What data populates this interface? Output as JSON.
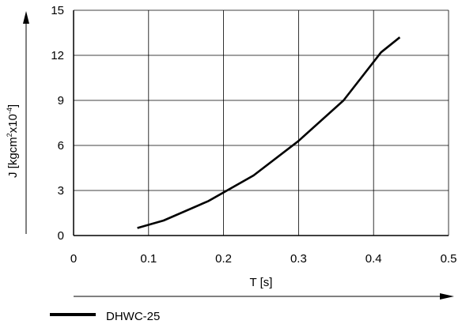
{
  "chart_data": {
    "type": "line",
    "xlabel": "T [s]",
    "ylabel_main": "J [kgcm",
    "ylabel_sup1": "2",
    "ylabel_mid": "x10",
    "ylabel_sup2": "-4",
    "ylabel_end": "]",
    "xlim": [
      0,
      0.5
    ],
    "ylim": [
      0,
      15
    ],
    "x_ticks": [
      0,
      0.1,
      0.2,
      0.3,
      0.4,
      0.5
    ],
    "x_tick_labels": [
      "0",
      "0.1",
      "0.2",
      "0.3",
      "0.4",
      "0.5"
    ],
    "y_ticks": [
      0,
      3,
      6,
      9,
      12,
      15
    ],
    "y_tick_labels": [
      "0",
      "3",
      "6",
      "9",
      "12",
      "15"
    ],
    "grid": true,
    "legend_position": "bottom-left",
    "series": [
      {
        "name": "DHWC-25",
        "color": "#000000",
        "x": [
          0.085,
          0.12,
          0.18,
          0.24,
          0.3,
          0.36,
          0.41,
          0.435
        ],
        "y": [
          0.5,
          1.0,
          2.3,
          4.0,
          6.3,
          9.0,
          12.2,
          13.2
        ]
      }
    ]
  }
}
